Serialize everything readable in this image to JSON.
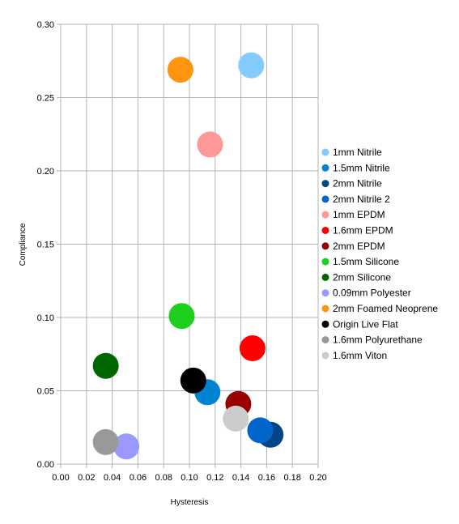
{
  "chart_data": {
    "type": "scatter",
    "title": "",
    "xlabel": "Hysteresis",
    "ylabel": "Compliance",
    "xlim": [
      0,
      0.2
    ],
    "ylim": [
      0,
      0.3
    ],
    "x_ticks": [
      "0.00",
      "0.02",
      "0.04",
      "0.06",
      "0.08",
      "0.10",
      "0.12",
      "0.14",
      "0.16",
      "0.18",
      "0.20"
    ],
    "y_ticks": [
      "0.00",
      "0.05",
      "0.10",
      "0.15",
      "0.20",
      "0.25",
      "0.30"
    ],
    "grid": true,
    "legend_position": "right",
    "series": [
      {
        "name": "1mm Nitrile",
        "color": "#83caff",
        "x": 0.148,
        "y": 0.272
      },
      {
        "name": "1.5mm Nitrile",
        "color": "#0084d1",
        "x": 0.114,
        "y": 0.049
      },
      {
        "name": "2mm Nitrile",
        "color": "#004586",
        "x": 0.163,
        "y": 0.02
      },
      {
        "name": "2mm Nitrile 2",
        "color": "#0066cc",
        "x": 0.155,
        "y": 0.023
      },
      {
        "name": "1mm EPDM",
        "color": "#ff9999",
        "x": 0.116,
        "y": 0.218
      },
      {
        "name": "1.6mm EPDM",
        "color": "#ff0000",
        "x": 0.149,
        "y": 0.079
      },
      {
        "name": "2mm EPDM",
        "color": "#990000",
        "x": 0.138,
        "y": 0.041
      },
      {
        "name": "1.5mm Silicone",
        "color": "#1ed01e",
        "x": 0.094,
        "y": 0.101
      },
      {
        "name": "2mm Silicone",
        "color": "#006600",
        "x": 0.035,
        "y": 0.067
      },
      {
        "name": "0.09mm Polyester",
        "color": "#9999ff",
        "x": 0.051,
        "y": 0.012
      },
      {
        "name": "2mm Foamed Neoprene",
        "color": "#ff950e",
        "x": 0.093,
        "y": 0.269
      },
      {
        "name": "Origin Live Flat",
        "color": "#000000",
        "x": 0.103,
        "y": 0.057
      },
      {
        "name": "1.6mm Polyurethane",
        "color": "#999999",
        "x": 0.035,
        "y": 0.015
      },
      {
        "name": "1.6mm Viton",
        "color": "#cccccc",
        "x": 0.136,
        "y": 0.031
      }
    ]
  }
}
